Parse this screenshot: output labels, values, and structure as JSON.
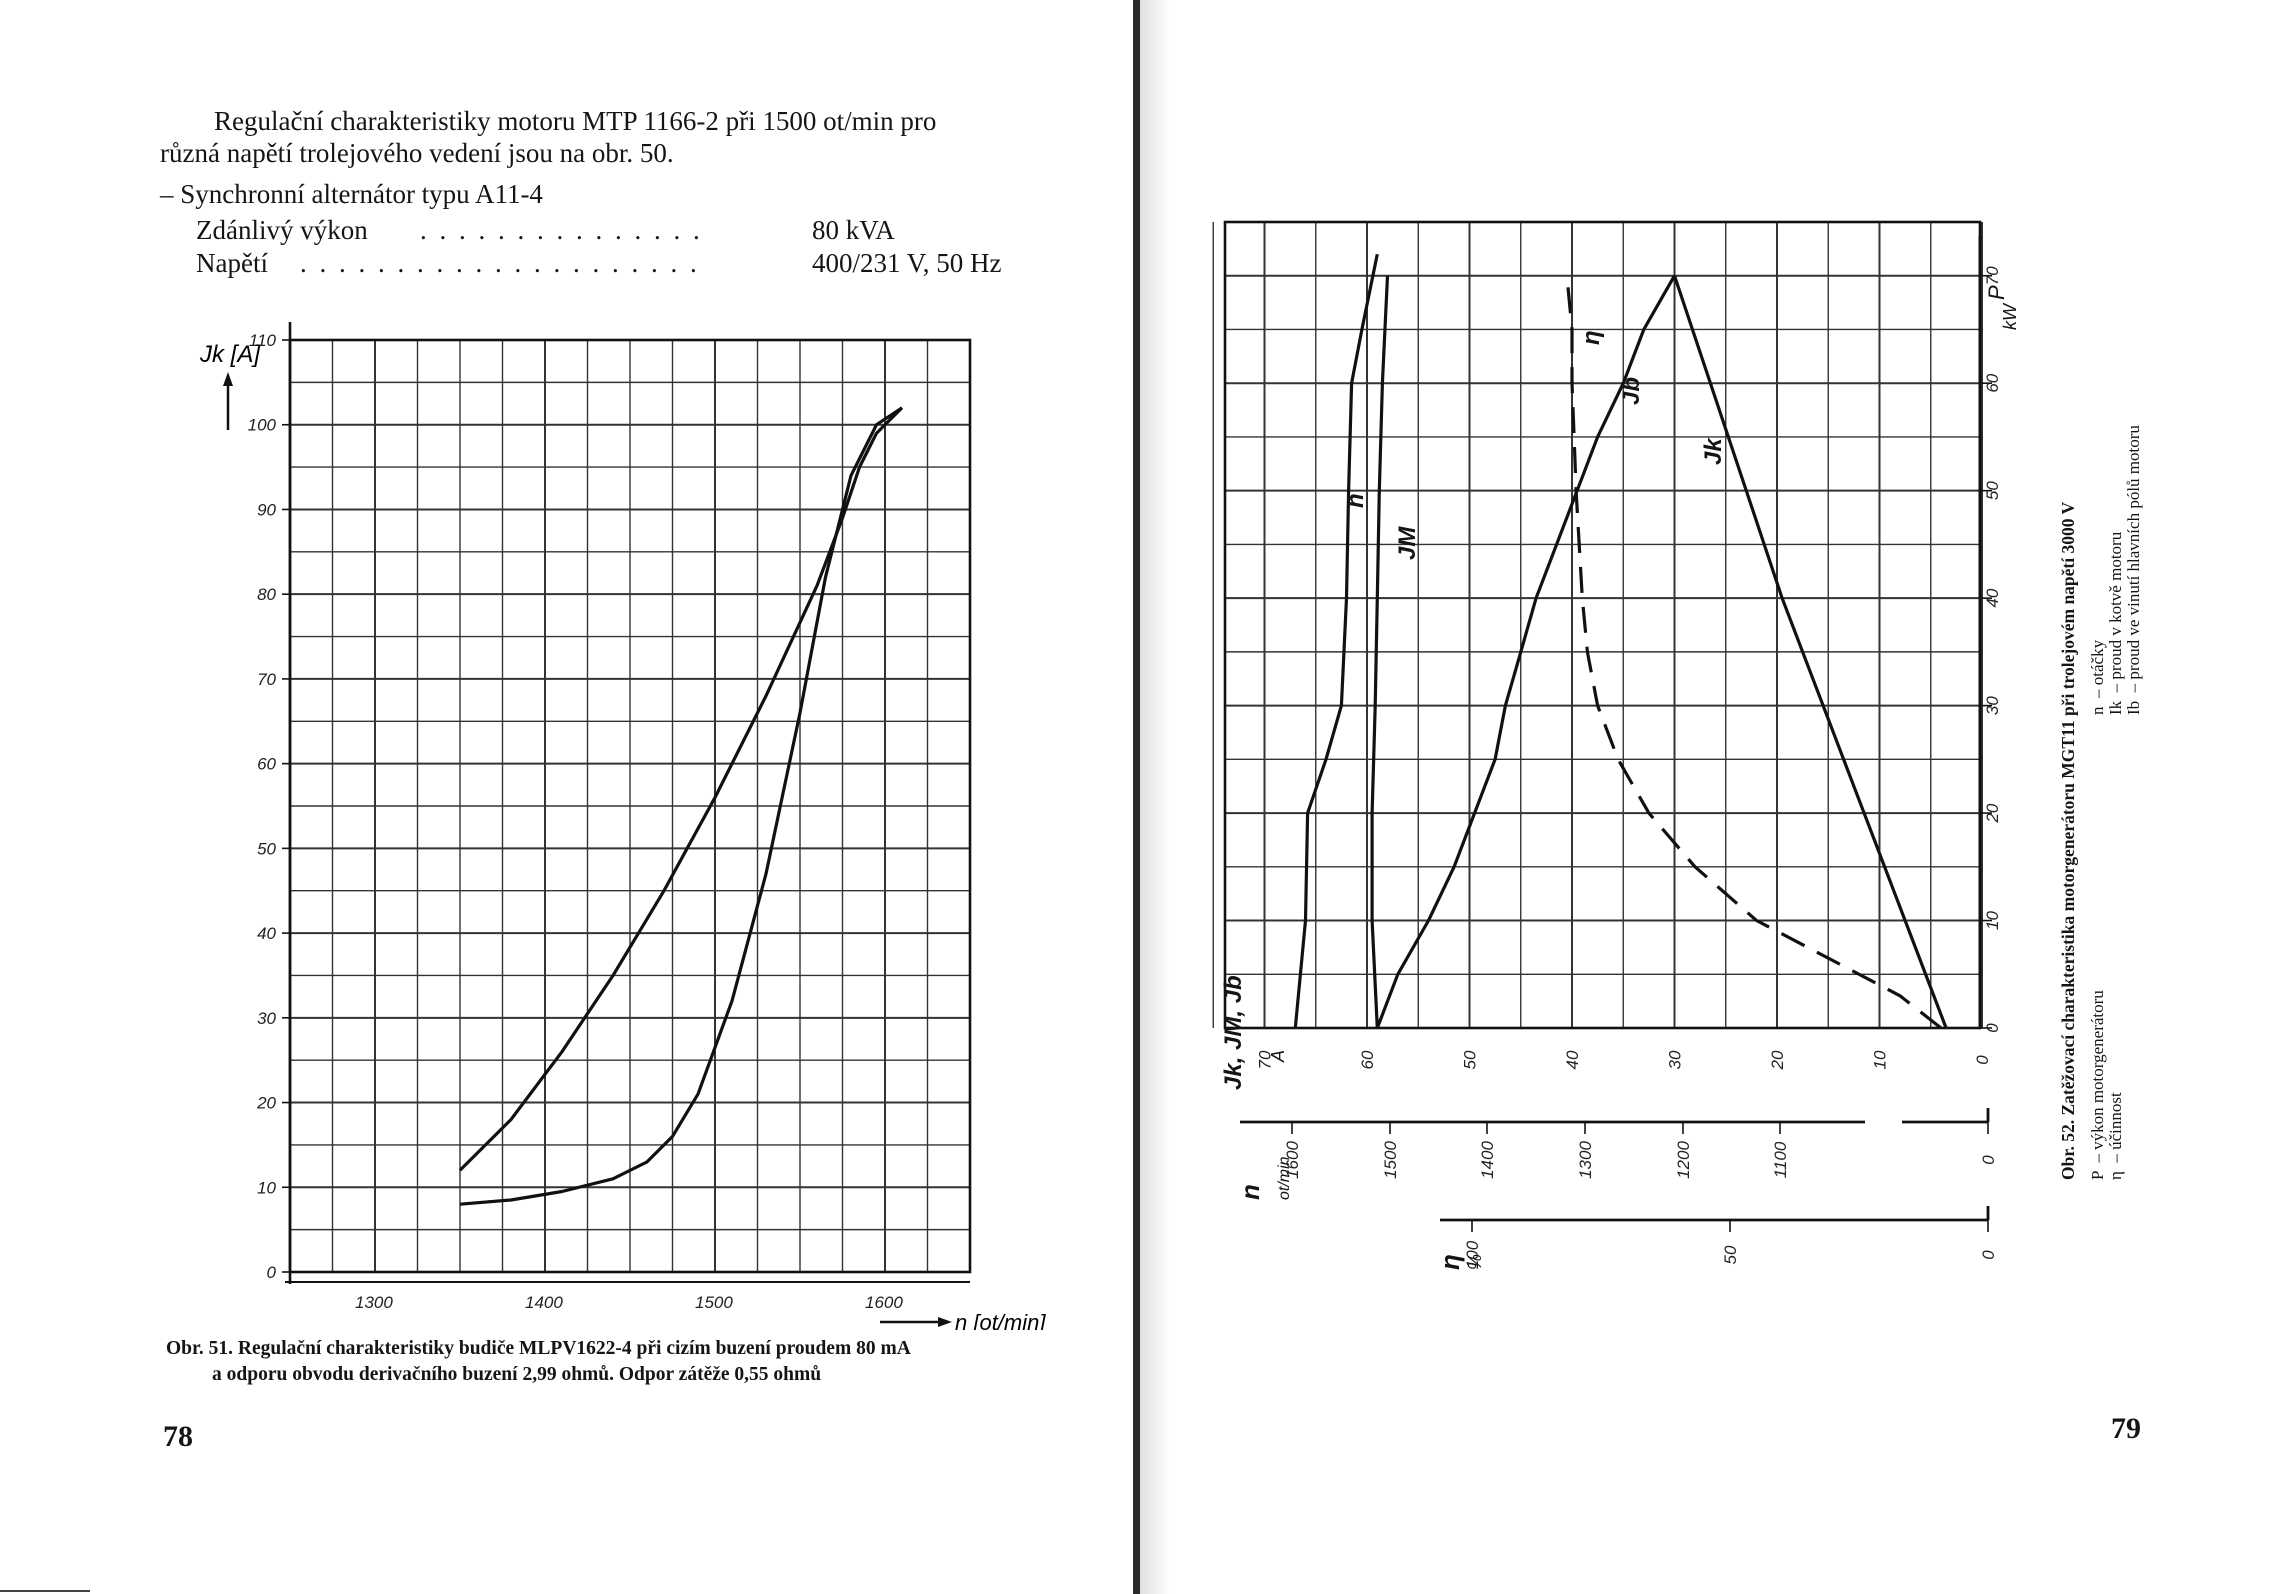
{
  "left_page": {
    "intro_lines": [
      "Regulační charakteristiky motoru MTP 1166-2 při 1500 ot/min pro",
      "různá napětí trolejového vedení jsou na obr. 50."
    ],
    "alternator_heading": "– Synchronní alternátor typu A11-4",
    "specs": [
      {
        "label": "Zdánlivý výkon",
        "value": "80 kVA"
      },
      {
        "label": "Napětí",
        "value": "400/231 V, 50 Hz"
      }
    ],
    "figure": {
      "y_axis_label": "Jk [A]",
      "x_axis_label": "n [ot/min]",
      "caption_lines": [
        "Obr. 51. Regulační charakteristiky budiče MLPV1622-4 při cizím buzení proudem 80 mA",
        "a odporu obvodu derivačního buzení 2,99 ohmů. Odpor zátěže 0,55 ohmů"
      ]
    },
    "page_number": "78"
  },
  "right_page": {
    "figure": {
      "p_axis_label": "P",
      "p_unit": "kW",
      "i_axis_label": "Jk, JM, Jb",
      "i_unit": "A",
      "n_axis_label": "n",
      "n_unit": "ot/min",
      "eta_axis_label": "η",
      "eta_unit": "%",
      "curve_labels": {
        "n": "n",
        "jm": "JM",
        "eta": "η",
        "jb": "Jb",
        "jk": "Jk"
      },
      "caption_title": "Obr. 52. Zatěžovací charakteristika motorgenerátoru MGT11 při trolejovém napětí 3000 V",
      "legend_lines": [
        "P  – výkon motorgenerátoru",
        "η  – účinnost",
        "n  – otáčky",
        "Ik  – proud v kotvě motoru",
        "Ib  – proud ve vinutí hlavních pólů motoru"
      ]
    },
    "page_number": "79"
  },
  "chart_data": [
    {
      "type": "line",
      "xlabel": "n [ot/min]",
      "ylabel": "Jk [A]",
      "xlim": [
        1250,
        1650
      ],
      "ylim": [
        0,
        110
      ],
      "x_ticks": [
        1300,
        1400,
        1500,
        1600
      ],
      "y_ticks": [
        0,
        10,
        20,
        30,
        40,
        50,
        60,
        70,
        80,
        90,
        100,
        110
      ],
      "grid": true,
      "series": [
        {
          "x": [
            1350,
            1380,
            1410,
            1440,
            1470,
            1500,
            1530,
            1560,
            1575,
            1585,
            1595,
            1610
          ],
          "y": [
            12,
            18,
            26,
            35,
            45,
            56,
            68,
            81,
            89,
            95,
            99,
            102
          ]
        },
        {
          "x": [
            1350,
            1380,
            1410,
            1440,
            1460,
            1475,
            1490,
            1510,
            1530,
            1550,
            1565,
            1580,
            1595,
            1610
          ],
          "y": [
            8,
            8.5,
            9.5,
            11,
            13,
            16,
            21,
            32,
            47,
            66,
            82,
            94,
            100,
            102
          ]
        }
      ]
    },
    {
      "type": "line",
      "x_axis": "P [kW]",
      "xlim": [
        0,
        75
      ],
      "x_ticks": [
        0,
        10,
        20,
        30,
        40,
        50,
        60,
        70
      ],
      "current_axis": {
        "label": "Jk, JM, Jb",
        "unit": "A",
        "range": [
          0,
          70
        ],
        "ticks": [
          0,
          10,
          20,
          30,
          40,
          50,
          60,
          70
        ]
      },
      "speed_axis": {
        "label": "n",
        "unit": "ot/min",
        "ticks": [
          1600,
          1500,
          1400,
          1300,
          1200,
          1100,
          0
        ]
      },
      "efficiency_axis": {
        "label": "η",
        "unit": "%",
        "ticks": [
          100,
          50,
          0
        ]
      },
      "grid": true,
      "series": [
        {
          "name": "n",
          "x": [
            0,
            10,
            20,
            25,
            30,
            40,
            50,
            60,
            65,
            72
          ],
          "y": [
            67,
            66,
            65.8,
            64,
            62.5,
            62,
            61.8,
            61.5,
            60.5,
            59
          ]
        },
        {
          "name": "JM",
          "x": [
            0,
            10,
            20,
            30,
            40,
            50,
            60,
            70
          ],
          "y": [
            59,
            59.5,
            59.5,
            59.2,
            59,
            58.8,
            58.5,
            58
          ]
        },
        {
          "name": "η",
          "x": [
            0,
            3,
            6,
            10,
            15,
            20,
            25,
            30,
            35,
            40,
            45,
            50,
            55,
            60,
            65,
            70
          ],
          "y": [
            4,
            8,
            14,
            22,
            28,
            32.5,
            35.5,
            37.5,
            38.5,
            39,
            39.3,
            39.6,
            39.8,
            40,
            40,
            40.5
          ]
        },
        {
          "name": "Jb",
          "x": [
            0,
            5,
            10,
            15,
            20,
            25,
            30,
            35,
            40,
            45,
            50,
            55,
            60,
            65,
            70
          ],
          "y": [
            59,
            57,
            54,
            51.5,
            49.5,
            47.5,
            46.5,
            45,
            43.5,
            41.5,
            39.5,
            37.5,
            35,
            33,
            30
          ]
        },
        {
          "name": "Jk",
          "x": [
            0,
            10,
            20,
            30,
            40,
            50,
            60,
            70
          ],
          "y": [
            3.5,
            7.5,
            11.5,
            15.5,
            19.5,
            23,
            26.5,
            30
          ]
        }
      ]
    }
  ]
}
